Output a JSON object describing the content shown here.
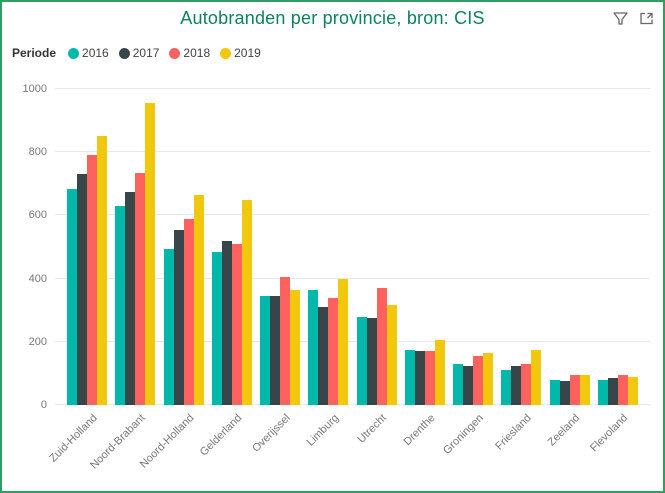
{
  "header": {
    "title": "Autobranden per provincie, bron: CIS",
    "icons": [
      {
        "name": "filter-icon"
      },
      {
        "name": "focus-mode-icon"
      }
    ]
  },
  "legend": {
    "label": "Periode",
    "items": [
      {
        "label": "2016",
        "color": "#01B8AA"
      },
      {
        "label": "2017",
        "color": "#374649"
      },
      {
        "label": "2018",
        "color": "#FD625E"
      },
      {
        "label": "2019",
        "color": "#F2C80F"
      }
    ]
  },
  "chart_data": {
    "type": "bar",
    "title": "Autobranden per provincie, bron: CIS",
    "xlabel": "",
    "ylabel": "",
    "categories": [
      "Zuid-Holland",
      "Noord-Brabant",
      "Noord-Holland",
      "Gelderland",
      "Overijssel",
      "Limburg",
      "Utrecht",
      "Drenthe",
      "Groningen",
      "Friesland",
      "Zeeland",
      "Flevoland"
    ],
    "series": [
      {
        "name": "2016",
        "color": "#01B8AA",
        "values": [
          685,
          630,
          495,
          485,
          345,
          365,
          280,
          175,
          130,
          110,
          80,
          80
        ]
      },
      {
        "name": "2017",
        "color": "#374649",
        "values": [
          730,
          675,
          555,
          520,
          345,
          310,
          275,
          170,
          125,
          125,
          75,
          85
        ]
      },
      {
        "name": "2018",
        "color": "#FD625E",
        "values": [
          790,
          735,
          590,
          510,
          405,
          340,
          370,
          170,
          155,
          130,
          95,
          95
        ]
      },
      {
        "name": "2019",
        "color": "#F2C80F",
        "values": [
          850,
          955,
          665,
          650,
          365,
          400,
          315,
          205,
          165,
          175,
          95,
          90
        ]
      }
    ],
    "ylim": [
      0,
      1000
    ],
    "yticks": [
      0,
      200,
      400,
      600,
      800,
      1000
    ],
    "grid": true,
    "legend_position": "top",
    "legend_title": "Periode"
  },
  "colors": {
    "title_text": "#10825A",
    "card_border": "#2F9E62",
    "axis_text": "#777777",
    "gridline": "#E8E8E8",
    "icon": "#666666"
  }
}
